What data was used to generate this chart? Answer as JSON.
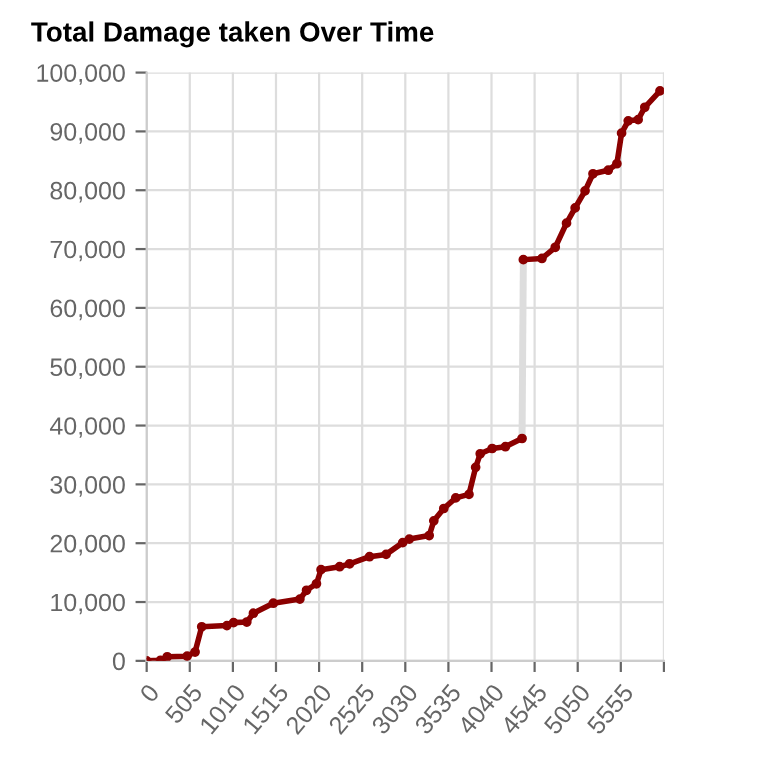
{
  "chart_data": {
    "type": "line",
    "title": "Total Damage taken Over Time",
    "xlim": [
      0,
      6060
    ],
    "xticks": [
      0,
      505,
      1010,
      1515,
      2020,
      2525,
      3030,
      3535,
      4040,
      4545,
      5050,
      5555,
      {
        "value": 6060,
        "label": null
      }
    ],
    "ylim": [
      0,
      100000
    ],
    "yticks": [
      {
        "value": 0,
        "label": "0"
      },
      {
        "value": 10000,
        "label": "10,000"
      },
      {
        "value": 20000,
        "label": "20,000"
      },
      {
        "value": 30000,
        "label": "30,000"
      },
      {
        "value": 40000,
        "label": "40,000"
      },
      {
        "value": 50000,
        "label": "50,000"
      },
      {
        "value": 60000,
        "label": "60,000"
      },
      {
        "value": 70000,
        "label": "70,000"
      },
      {
        "value": 80000,
        "label": "80,000"
      },
      {
        "value": 90000,
        "label": "90,000"
      },
      {
        "value": 100000,
        "label": "100,000"
      }
    ],
    "grid": true,
    "legend": false,
    "series": [
      {
        "color": "#dddddd",
        "marker": "none",
        "x": [
          4398,
          4413
        ],
        "values": [
          37800,
          68200
        ]
      },
      {
        "color": "#8b0000",
        "marker": "circle",
        "x": [
          0,
          163,
          241,
          474,
          567,
          645,
          940,
          1018,
          1173,
          1251,
          1484,
          1795,
          1873,
          1989,
          2043,
          2261,
          2378,
          2611,
          2805,
          3000,
          3077,
          3310,
          3364,
          3481,
          3621,
          3776,
          3854,
          3908,
          4048,
          4203,
          4398
        ],
        "values": [
          0,
          100,
          700,
          800,
          1500,
          5800,
          6000,
          6500,
          6600,
          8100,
          9800,
          10500,
          12000,
          13100,
          15500,
          16000,
          16500,
          17700,
          18100,
          20100,
          20700,
          21300,
          23800,
          25900,
          27700,
          28300,
          32900,
          35200,
          36100,
          36400,
          37800
        ]
      },
      {
        "color": "#8b0000",
        "marker": "circle",
        "x": [
          4413,
          4631,
          4787,
          4919,
          5020,
          5136,
          5229,
          5408,
          5509,
          5564,
          5642,
          5758,
          5836,
          6014
        ],
        "values": [
          68200,
          68400,
          70300,
          74400,
          77000,
          79900,
          82800,
          83400,
          84500,
          89700,
          91800,
          92000,
          94100,
          96900
        ]
      }
    ]
  }
}
